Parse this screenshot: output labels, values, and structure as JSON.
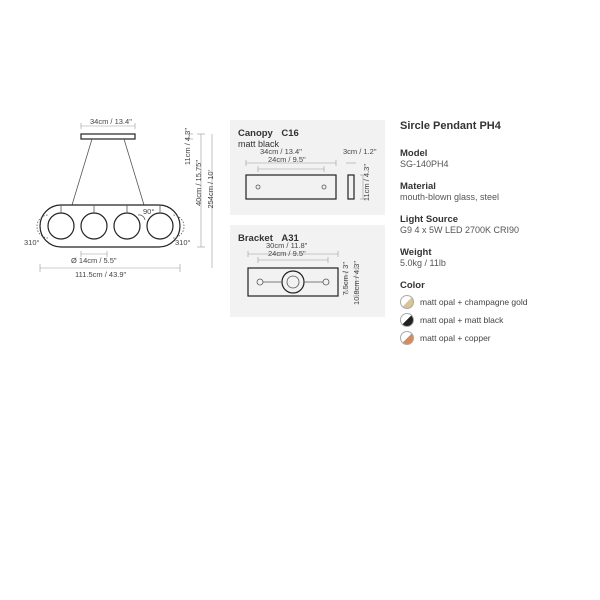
{
  "main": {
    "dims": {
      "top_w": "34cm / 13.4\"",
      "right_h1": "11cm / 4.3\"",
      "right_h2": "40cm / 15.75\"",
      "right_h3": "254cm / 10'",
      "bottom_w": "111.5cm / 43.9\"",
      "dia": "Ø 14cm / 5.5\"",
      "angle_outer": "310°",
      "angle_inner": "90°"
    }
  },
  "canopy": {
    "title": "Canopy",
    "code": "C16",
    "finish": "matt black",
    "dims": {
      "w1": "34cm / 13.4\"",
      "w2": "24cm / 9.5\"",
      "d": "3cm / 1.2\"",
      "h": "11cm / 4.3\""
    }
  },
  "bracket": {
    "title": "Bracket",
    "code": "A31",
    "dims": {
      "w1": "30cm / 11.8\"",
      "w2": "24cm / 9.5\"",
      "h1": "7.5cm / 3\"",
      "h2": "10.8cm / 4.3\""
    }
  },
  "spec": {
    "title": "Sircle Pendant PH4",
    "model_label": "Model",
    "model": "SG-140PH4",
    "material_label": "Material",
    "material": "mouth-blown glass, steel",
    "light_label": "Light Source",
    "light": "G9 4 x 5W LED 2700K CRI90",
    "weight_label": "Weight",
    "weight": "5.0kg / 11lb",
    "color_label": "Color",
    "colors": [
      {
        "label": "matt opal + champagne gold",
        "hex": "#d8c494"
      },
      {
        "label": "matt opal + matt black",
        "hex": "#222222"
      },
      {
        "label": "matt opal + copper",
        "hex": "#d88a5a"
      }
    ]
  }
}
